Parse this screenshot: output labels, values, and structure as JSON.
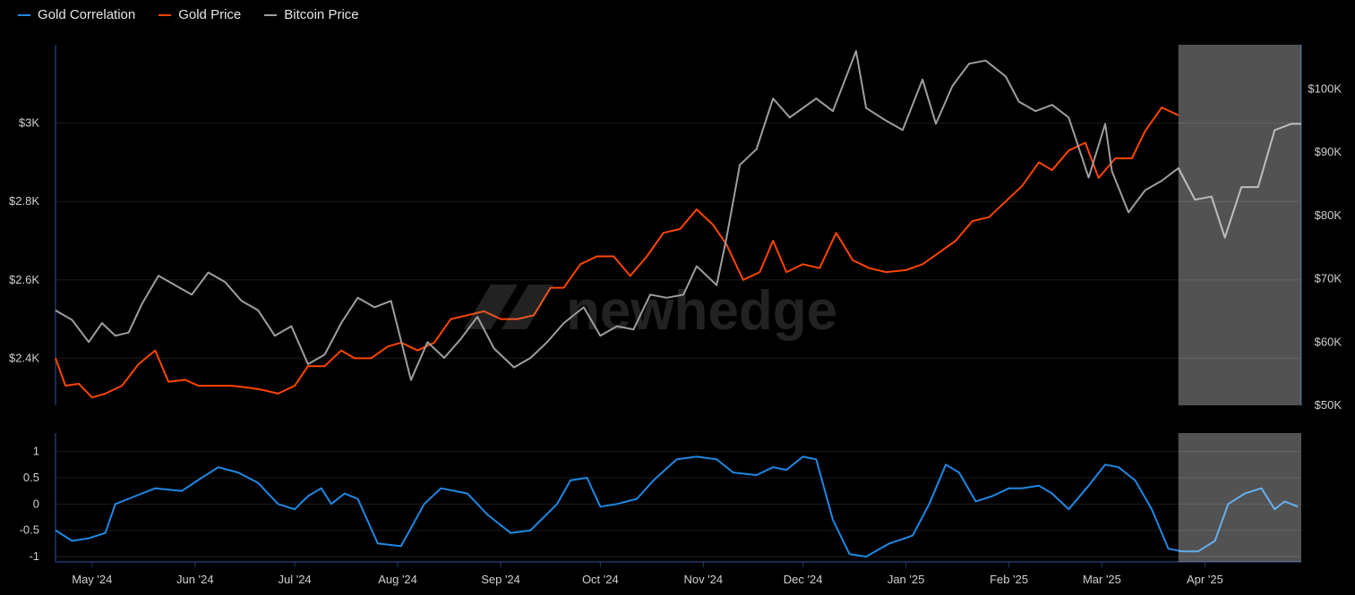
{
  "legend": [
    {
      "label": "Gold Correlation",
      "color": "#1e88e5"
    },
    {
      "label": "Gold Price",
      "color": "#ff4500"
    },
    {
      "label": "Bitcoin Price",
      "color": "#9e9e9e"
    }
  ],
  "watermark": "newhedge",
  "chart_data": [
    {
      "type": "line",
      "x_range": [
        "2024-04-20",
        "2025-04-30"
      ],
      "x_ticks": [
        "May '24",
        "Jun '24",
        "Jul '24",
        "Aug '24",
        "Sep '24",
        "Oct '24",
        "Nov '24",
        "Dec '24",
        "Jan '25",
        "Feb '25",
        "Mar '25",
        "Apr '25"
      ],
      "y_left": {
        "ticks": [
          "$2.4K",
          "$2.6K",
          "$2.8K",
          "$3K"
        ],
        "values": [
          2400,
          2600,
          2800,
          3000
        ],
        "range": [
          2280,
          3200
        ]
      },
      "y_right": {
        "ticks": [
          "$50K",
          "$60K",
          "$70K",
          "$80K",
          "$90K",
          "$100K"
        ],
        "values": [
          50000,
          60000,
          70000,
          80000,
          90000,
          100000
        ],
        "range": [
          50000,
          107000
        ]
      },
      "shaded_from": "2025-03-24",
      "series": [
        {
          "name": "Gold Price",
          "axis": "left",
          "color": "#ff4500",
          "points": [
            [
              "2024-04-20",
              2400
            ],
            [
              "2024-04-23",
              2330
            ],
            [
              "2024-04-27",
              2335
            ],
            [
              "2024-05-01",
              2300
            ],
            [
              "2024-05-05",
              2310
            ],
            [
              "2024-05-10",
              2330
            ],
            [
              "2024-05-15",
              2385
            ],
            [
              "2024-05-20",
              2420
            ],
            [
              "2024-05-24",
              2340
            ],
            [
              "2024-05-29",
              2345
            ],
            [
              "2024-06-02",
              2330
            ],
            [
              "2024-06-07",
              2330
            ],
            [
              "2024-06-12",
              2330
            ],
            [
              "2024-06-17",
              2325
            ],
            [
              "2024-06-21",
              2320
            ],
            [
              "2024-06-26",
              2310
            ],
            [
              "2024-07-01",
              2330
            ],
            [
              "2024-07-05",
              2380
            ],
            [
              "2024-07-10",
              2380
            ],
            [
              "2024-07-15",
              2420
            ],
            [
              "2024-07-19",
              2400
            ],
            [
              "2024-07-24",
              2400
            ],
            [
              "2024-07-29",
              2430
            ],
            [
              "2024-08-02",
              2440
            ],
            [
              "2024-08-07",
              2420
            ],
            [
              "2024-08-12",
              2440
            ],
            [
              "2024-08-17",
              2500
            ],
            [
              "2024-08-22",
              2510
            ],
            [
              "2024-08-27",
              2520
            ],
            [
              "2024-09-01",
              2500
            ],
            [
              "2024-09-06",
              2500
            ],
            [
              "2024-09-11",
              2510
            ],
            [
              "2024-09-16",
              2580
            ],
            [
              "2024-09-20",
              2580
            ],
            [
              "2024-09-25",
              2640
            ],
            [
              "2024-09-30",
              2660
            ],
            [
              "2024-10-05",
              2660
            ],
            [
              "2024-10-10",
              2610
            ],
            [
              "2024-10-15",
              2660
            ],
            [
              "2024-10-20",
              2720
            ],
            [
              "2024-10-25",
              2730
            ],
            [
              "2024-10-30",
              2780
            ],
            [
              "2024-11-04",
              2740
            ],
            [
              "2024-11-08",
              2690
            ],
            [
              "2024-11-13",
              2600
            ],
            [
              "2024-11-18",
              2620
            ],
            [
              "2024-11-22",
              2700
            ],
            [
              "2024-11-26",
              2620
            ],
            [
              "2024-12-01",
              2640
            ],
            [
              "2024-12-06",
              2630
            ],
            [
              "2024-12-11",
              2720
            ],
            [
              "2024-12-16",
              2650
            ],
            [
              "2024-12-21",
              2630
            ],
            [
              "2024-12-26",
              2620
            ],
            [
              "2025-01-01",
              2625
            ],
            [
              "2025-01-06",
              2640
            ],
            [
              "2025-01-11",
              2670
            ],
            [
              "2025-01-16",
              2700
            ],
            [
              "2025-01-21",
              2750
            ],
            [
              "2025-01-26",
              2760
            ],
            [
              "2025-01-31",
              2800
            ],
            [
              "2025-02-05",
              2840
            ],
            [
              "2025-02-10",
              2900
            ],
            [
              "2025-02-14",
              2880
            ],
            [
              "2025-02-19",
              2930
            ],
            [
              "2025-02-24",
              2950
            ],
            [
              "2025-02-28",
              2860
            ],
            [
              "2025-03-05",
              2910
            ],
            [
              "2025-03-10",
              2910
            ],
            [
              "2025-03-14",
              2980
            ],
            [
              "2025-03-19",
              3040
            ],
            [
              "2025-03-24",
              3020
            ]
          ]
        },
        {
          "name": "Bitcoin Price",
          "axis": "right",
          "color": "#9e9e9e",
          "points": [
            [
              "2024-04-20",
              65000
            ],
            [
              "2024-04-25",
              63500
            ],
            [
              "2024-04-30",
              60000
            ],
            [
              "2024-05-04",
              63000
            ],
            [
              "2024-05-08",
              61000
            ],
            [
              "2024-05-12",
              61500
            ],
            [
              "2024-05-16",
              66000
            ],
            [
              "2024-05-21",
              70500
            ],
            [
              "2024-05-26",
              69000
            ],
            [
              "2024-05-31",
              67500
            ],
            [
              "2024-06-05",
              71000
            ],
            [
              "2024-06-10",
              69500
            ],
            [
              "2024-06-15",
              66500
            ],
            [
              "2024-06-20",
              65000
            ],
            [
              "2024-06-25",
              61000
            ],
            [
              "2024-06-30",
              62500
            ],
            [
              "2024-07-05",
              56500
            ],
            [
              "2024-07-10",
              58000
            ],
            [
              "2024-07-15",
              63000
            ],
            [
              "2024-07-20",
              67000
            ],
            [
              "2024-07-25",
              65500
            ],
            [
              "2024-07-30",
              66500
            ],
            [
              "2024-08-05",
              54000
            ],
            [
              "2024-08-10",
              60000
            ],
            [
              "2024-08-15",
              57500
            ],
            [
              "2024-08-20",
              60500
            ],
            [
              "2024-08-25",
              64000
            ],
            [
              "2024-08-30",
              59000
            ],
            [
              "2024-09-05",
              56000
            ],
            [
              "2024-09-10",
              57500
            ],
            [
              "2024-09-15",
              60000
            ],
            [
              "2024-09-20",
              63000
            ],
            [
              "2024-09-26",
              65500
            ],
            [
              "2024-10-01",
              61000
            ],
            [
              "2024-10-06",
              62500
            ],
            [
              "2024-10-11",
              62000
            ],
            [
              "2024-10-16",
              67500
            ],
            [
              "2024-10-21",
              67000
            ],
            [
              "2024-10-26",
              67500
            ],
            [
              "2024-10-30",
              72000
            ],
            [
              "2024-11-05",
              69000
            ],
            [
              "2024-11-08",
              76500
            ],
            [
              "2024-11-12",
              88000
            ],
            [
              "2024-11-17",
              90500
            ],
            [
              "2024-11-22",
              98500
            ],
            [
              "2024-11-27",
              95500
            ],
            [
              "2024-12-01",
              97000
            ],
            [
              "2024-12-05",
              98500
            ],
            [
              "2024-12-10",
              96500
            ],
            [
              "2024-12-17",
              106000
            ],
            [
              "2024-12-20",
              97000
            ],
            [
              "2024-12-26",
              95000
            ],
            [
              "2024-12-31",
              93500
            ],
            [
              "2025-01-06",
              101500
            ],
            [
              "2025-01-10",
              94500
            ],
            [
              "2025-01-15",
              100500
            ],
            [
              "2025-01-20",
              104000
            ],
            [
              "2025-01-25",
              104500
            ],
            [
              "2025-01-31",
              102000
            ],
            [
              "2025-02-04",
              98000
            ],
            [
              "2025-02-09",
              96500
            ],
            [
              "2025-02-14",
              97500
            ],
            [
              "2025-02-19",
              95500
            ],
            [
              "2025-02-25",
              86000
            ],
            [
              "2025-03-02",
              94500
            ],
            [
              "2025-03-04",
              87000
            ],
            [
              "2025-03-09",
              80500
            ],
            [
              "2025-03-14",
              84000
            ],
            [
              "2025-03-19",
              85500
            ],
            [
              "2025-03-24",
              87500
            ],
            [
              "2025-03-29",
              82500
            ],
            [
              "2025-04-03",
              83000
            ],
            [
              "2025-04-07",
              76500
            ],
            [
              "2025-04-12",
              84500
            ],
            [
              "2025-04-17",
              84500
            ],
            [
              "2025-04-22",
              93500
            ],
            [
              "2025-04-27",
              94500
            ],
            [
              "2025-04-30",
              94500
            ]
          ]
        }
      ]
    },
    {
      "type": "line",
      "x_range": [
        "2024-04-20",
        "2025-04-30"
      ],
      "y_left": {
        "ticks": [
          "1",
          "0.5",
          "0",
          "-0.5",
          "-1"
        ],
        "values": [
          1,
          0.5,
          0,
          -0.5,
          -1
        ],
        "range": [
          -1.1,
          1.35
        ]
      },
      "shaded_from": "2025-03-24",
      "series": [
        {
          "name": "Gold Correlation",
          "axis": "left",
          "color": "#1e88e5",
          "points": [
            [
              "2024-04-20",
              -0.5
            ],
            [
              "2024-04-25",
              -0.7
            ],
            [
              "2024-04-30",
              -0.65
            ],
            [
              "2024-05-05",
              -0.55
            ],
            [
              "2024-05-08",
              0.0
            ],
            [
              "2024-05-12",
              0.1
            ],
            [
              "2024-05-20",
              0.3
            ],
            [
              "2024-05-28",
              0.25
            ],
            [
              "2024-06-03",
              0.5
            ],
            [
              "2024-06-08",
              0.7
            ],
            [
              "2024-06-14",
              0.6
            ],
            [
              "2024-06-20",
              0.4
            ],
            [
              "2024-06-26",
              0.0
            ],
            [
              "2024-07-01",
              -0.1
            ],
            [
              "2024-07-05",
              0.15
            ],
            [
              "2024-07-09",
              0.3
            ],
            [
              "2024-07-12",
              0.0
            ],
            [
              "2024-07-16",
              0.2
            ],
            [
              "2024-07-20",
              0.1
            ],
            [
              "2024-07-26",
              -0.75
            ],
            [
              "2024-08-02",
              -0.8
            ],
            [
              "2024-08-09",
              0.0
            ],
            [
              "2024-08-14",
              0.3
            ],
            [
              "2024-08-22",
              0.2
            ],
            [
              "2024-08-28",
              -0.2
            ],
            [
              "2024-09-04",
              -0.55
            ],
            [
              "2024-09-10",
              -0.5
            ],
            [
              "2024-09-18",
              0.0
            ],
            [
              "2024-09-22",
              0.45
            ],
            [
              "2024-09-27",
              0.5
            ],
            [
              "2024-10-01",
              -0.05
            ],
            [
              "2024-10-06",
              0.0
            ],
            [
              "2024-10-12",
              0.1
            ],
            [
              "2024-10-17",
              0.45
            ],
            [
              "2024-10-24",
              0.85
            ],
            [
              "2024-10-30",
              0.9
            ],
            [
              "2024-11-05",
              0.85
            ],
            [
              "2024-11-10",
              0.6
            ],
            [
              "2024-11-17",
              0.55
            ],
            [
              "2024-11-22",
              0.7
            ],
            [
              "2024-11-26",
              0.65
            ],
            [
              "2024-12-01",
              0.9
            ],
            [
              "2024-12-05",
              0.85
            ],
            [
              "2024-12-10",
              -0.3
            ],
            [
              "2024-12-15",
              -0.95
            ],
            [
              "2024-12-20",
              -1.0
            ],
            [
              "2024-12-27",
              -0.75
            ],
            [
              "2025-01-03",
              -0.6
            ],
            [
              "2025-01-08",
              0.0
            ],
            [
              "2025-01-13",
              0.75
            ],
            [
              "2025-01-17",
              0.6
            ],
            [
              "2025-01-22",
              0.05
            ],
            [
              "2025-01-27",
              0.15
            ],
            [
              "2025-02-01",
              0.3
            ],
            [
              "2025-02-05",
              0.3
            ],
            [
              "2025-02-10",
              0.35
            ],
            [
              "2025-02-14",
              0.2
            ],
            [
              "2025-02-19",
              -0.1
            ],
            [
              "2025-02-25",
              0.35
            ],
            [
              "2025-03-02",
              0.75
            ],
            [
              "2025-03-06",
              0.7
            ],
            [
              "2025-03-11",
              0.45
            ],
            [
              "2025-03-16",
              -0.1
            ],
            [
              "2025-03-21",
              -0.85
            ],
            [
              "2025-03-25",
              -0.9
            ],
            [
              "2025-03-30",
              -0.9
            ],
            [
              "2025-04-04",
              -0.7
            ],
            [
              "2025-04-08",
              0.0
            ],
            [
              "2025-04-13",
              0.2
            ],
            [
              "2025-04-18",
              0.3
            ],
            [
              "2025-04-22",
              -0.1
            ],
            [
              "2025-04-25",
              0.05
            ],
            [
              "2025-04-29",
              -0.05
            ]
          ]
        }
      ]
    }
  ]
}
